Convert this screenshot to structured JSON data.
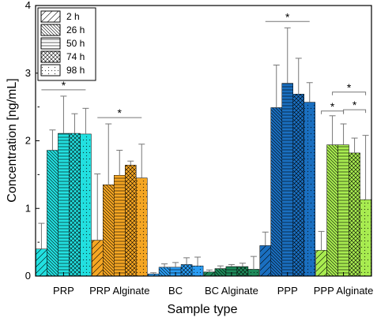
{
  "chart_data": {
    "type": "bar",
    "xlabel": "Sample type",
    "ylabel": "Concentration [ng/mL]",
    "ylim": [
      0,
      4
    ],
    "yticks": [
      "0",
      "1",
      "2",
      "3",
      "4"
    ],
    "categories": [
      "PRP",
      "PRP Alginate",
      "BC",
      "BC Alginate",
      "PPP",
      "PPP Alginate"
    ],
    "category_colors": [
      "#22e0e0",
      "#f5a623",
      "#2a9df4",
      "#1e8a5a",
      "#1a6fc0",
      "#a8ec50"
    ],
    "series": [
      {
        "name": "2 h",
        "pattern": "diag",
        "values": [
          0.4,
          0.53,
          0.03,
          0.06,
          0.45,
          0.38
        ],
        "errors": [
          0.38,
          0.98,
          0.02,
          0.03,
          0.2,
          0.28
        ]
      },
      {
        "name": "26 h",
        "pattern": "diag-dense",
        "values": [
          1.86,
          1.35,
          0.13,
          0.11,
          2.49,
          1.94
        ],
        "errors": [
          0.3,
          0.9,
          0.05,
          0.04,
          0.63,
          0.43
        ]
      },
      {
        "name": "50 h",
        "pattern": "horiz",
        "values": [
          2.11,
          1.49,
          0.13,
          0.14,
          2.85,
          1.94
        ],
        "errors": [
          0.55,
          0.37,
          0.07,
          0.03,
          0.82,
          0.31
        ]
      },
      {
        "name": "74 h",
        "pattern": "cross",
        "values": [
          2.11,
          1.64,
          0.17,
          0.14,
          2.69,
          1.82
        ],
        "errors": [
          0.29,
          0.06,
          0.1,
          0.05,
          0.53,
          0.22
        ]
      },
      {
        "name": "98 h",
        "pattern": "dots",
        "values": [
          2.1,
          1.45,
          0.15,
          0.1,
          2.57,
          1.13
        ],
        "errors": [
          0.38,
          0.5,
          0.13,
          0.19,
          0.29,
          0.95
        ]
      }
    ],
    "significance": [
      {
        "category": "PRP",
        "from": "2 h",
        "to": "98 h",
        "label": "*"
      },
      {
        "category": "PRP Alginate",
        "from": "2 h",
        "to": "98 h",
        "label": "*"
      },
      {
        "category": "PPP",
        "from": "2 h",
        "to": "98 h",
        "label": "*"
      },
      {
        "category": "PPP Alginate",
        "from": "2 h",
        "to": "50 h",
        "label": "*"
      },
      {
        "category": "PPP Alginate",
        "from": "50 h",
        "to": "98 h",
        "label": "*"
      },
      {
        "category": "PPP Alginate",
        "from": "26 h",
        "to": "98 h",
        "label": "*"
      }
    ],
    "legend_position": "top-left"
  }
}
